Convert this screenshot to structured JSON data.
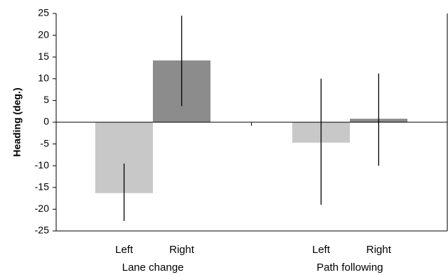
{
  "chart_data": {
    "type": "bar",
    "ylabel": "Heading (deg.)",
    "ylim": [
      -25,
      25
    ],
    "yticks": [
      25,
      20,
      15,
      10,
      5,
      0,
      -5,
      -10,
      -15,
      -20,
      -25
    ],
    "groups": [
      {
        "name": "Lane change",
        "bars": [
          {
            "label": "Left",
            "value": -16.3,
            "err_low": -22.7,
            "err_high": -9.5,
            "color": "#c8c8c8"
          },
          {
            "label": "Right",
            "value": 14.2,
            "err_low": 3.7,
            "err_high": 24.5,
            "color": "#8c8c8c"
          }
        ]
      },
      {
        "name": "Path following",
        "bars": [
          {
            "label": "Left",
            "value": -4.7,
            "err_low": -19.0,
            "err_high": 10.0,
            "color": "#c8c8c8"
          },
          {
            "label": "Right",
            "value": 0.8,
            "err_low": -10.0,
            "err_high": 11.2,
            "color": "#8c8c8c"
          }
        ]
      }
    ],
    "grid": false,
    "legend": "none"
  }
}
